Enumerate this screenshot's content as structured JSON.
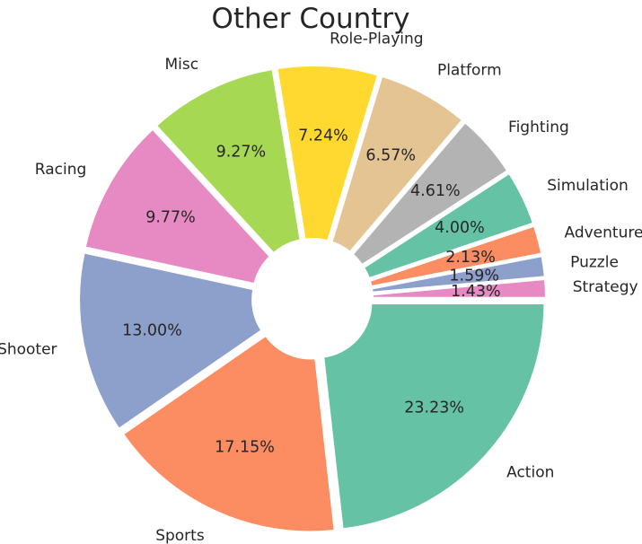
{
  "chart_data": {
    "type": "pie",
    "variant": "donut",
    "title": "Other Country",
    "categories": [
      "Action",
      "Sports",
      "Shooter",
      "Racing",
      "Misc",
      "Role-Playing",
      "Platform",
      "Fighting",
      "Simulation",
      "Adventure",
      "Puzzle",
      "Strategy"
    ],
    "values": [
      23.23,
      17.15,
      13.0,
      9.77,
      9.27,
      7.24,
      6.57,
      4.61,
      4.0,
      2.13,
      1.59,
      1.43
    ],
    "percent_labels": [
      "23.23%",
      "17.15%",
      "13.00%",
      "9.77%",
      "9.27%",
      "7.24%",
      "6.57%",
      "4.61%",
      "4.00%",
      "2.13%",
      "1.59%",
      "1.43%"
    ],
    "colors": [
      "#66c2a5",
      "#fc8d62",
      "#8da0cb",
      "#e78ac3",
      "#a6d854",
      "#ffd92f",
      "#e5c494",
      "#b3b3b3",
      "#66c2a5",
      "#fc8d62",
      "#8da0cb",
      "#e78ac3"
    ],
    "start_angle_deg": 0,
    "direction": "clockwise",
    "wedge_edge_color": "#ffffff",
    "legend": "none"
  }
}
